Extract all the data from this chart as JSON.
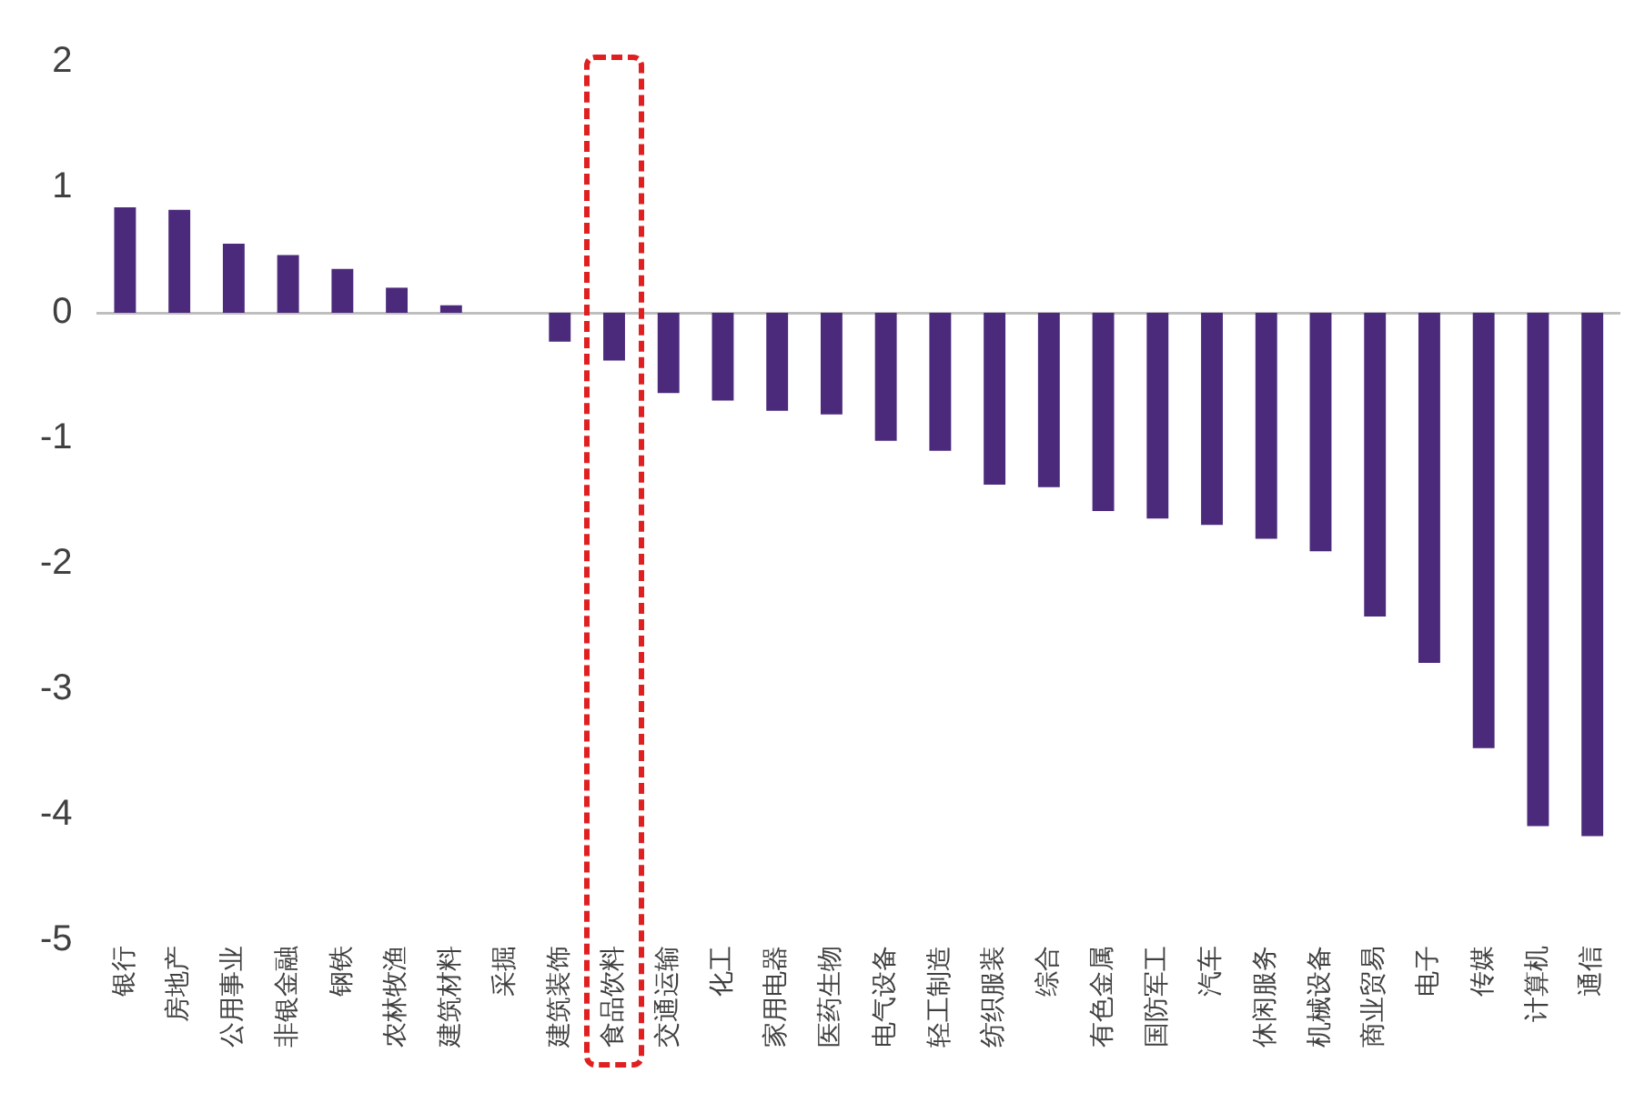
{
  "chart_data": {
    "type": "bar",
    "categories": [
      "银行",
      "房地产",
      "公用事业",
      "非银金融",
      "钢铁",
      "农林牧渔",
      "建筑材料",
      "采掘",
      "建筑装饰",
      "食品饮料",
      "交通运输",
      "化工",
      "家用电器",
      "医药生物",
      "电气设备",
      "轻工制造",
      "纺织服装",
      "综合",
      "有色金属",
      "国防军工",
      "汽车",
      "休闲服务",
      "机械设备",
      "商业贸易",
      "电子",
      "传媒",
      "计算机",
      "通信"
    ],
    "values": [
      0.84,
      0.82,
      0.55,
      0.46,
      0.35,
      0.2,
      0.06,
      0,
      -0.23,
      -0.38,
      -0.64,
      -0.7,
      -0.78,
      -0.81,
      -1.02,
      -1.1,
      -1.37,
      -1.39,
      -1.58,
      -1.64,
      -1.69,
      -1.8,
      -1.9,
      -2.42,
      -2.79,
      -3.47,
      -4.09,
      -4.17
    ],
    "color": "#4b2a7b",
    "ylim": [
      -5,
      2
    ],
    "yticks": [
      -5,
      -4,
      -3,
      -2,
      -1,
      0,
      1,
      2
    ],
    "legend": false
  }
}
